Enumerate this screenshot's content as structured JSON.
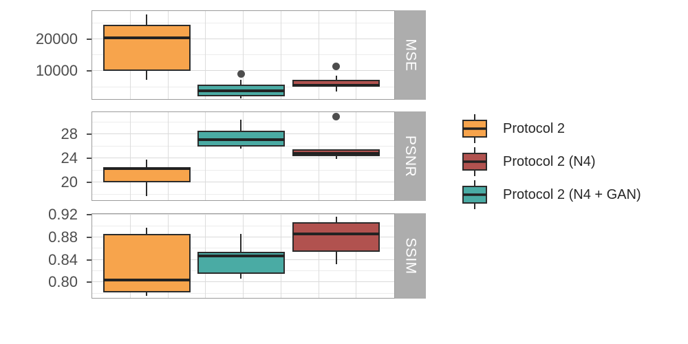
{
  "figure": {
    "background": "#ffffff",
    "panel_border": "#9b9b9b",
    "strip_fill": "#adadad",
    "strip_text_color": "#ffffff",
    "axis_text_color": "#4d4d4d",
    "box_outline_color": "#2b2b2b",
    "outlier_color": "#4d4d4d",
    "grid_major_color": "#d9d9d9",
    "grid_minor_color": "#ececec"
  },
  "legend": {
    "items": [
      {
        "label": "Protocol 2",
        "color": "#f7a44c"
      },
      {
        "label": "Protocol 2 (N4)",
        "color": "#b1524f"
      },
      {
        "label": "Protocol 2 (N4 + GAN)",
        "color": "#4aaba4"
      }
    ]
  },
  "chart_data": {
    "type": "boxplot",
    "orientation": "vertical",
    "legend_position": "right",
    "grid": "major+minor horizontal, vertical on",
    "x_order": [
      "Protocol 2",
      "Protocol 2 (N4 + GAN)",
      "Protocol 2 (N4)"
    ],
    "facets": [
      {
        "label": "MSE",
        "ylim": [
          1400,
          28700
        ],
        "major_ticks": [
          {
            "value": 10000,
            "label": "10000"
          },
          {
            "value": 20000,
            "label": "20000"
          }
        ],
        "minor_ticks": [
          5000,
          15000,
          25000
        ],
        "boxes": [
          {
            "series": "Protocol 2",
            "q1": 10100,
            "median": 20400,
            "q3": 24400,
            "whisker_low": 7100,
            "whisker_high": 27600,
            "outliers": []
          },
          {
            "series": "Protocol 2 (N4 + GAN)",
            "q1": 2000,
            "median": 3700,
            "q3": 5800,
            "whisker_low": 1500,
            "whisker_high": 7300,
            "outliers": [
              9000
            ]
          },
          {
            "series": "Protocol 2 (N4)",
            "q1": 5000,
            "median": 5400,
            "q3": 7300,
            "whisker_low": 3500,
            "whisker_high": 8600,
            "outliers": [
              11500
            ]
          }
        ]
      },
      {
        "label": "PSNR",
        "ylim": [
          17.1,
          31.6
        ],
        "major_ticks": [
          {
            "value": 20,
            "label": "20"
          },
          {
            "value": 24,
            "label": "24"
          },
          {
            "value": 28,
            "label": "28"
          }
        ],
        "minor_ticks": [
          18,
          22,
          26,
          30
        ],
        "boxes": [
          {
            "series": "Protocol 2",
            "q1": 19.9,
            "median": 22.2,
            "q3": 22.4,
            "whisker_low": 17.7,
            "whisker_high": 23.7,
            "outliers": []
          },
          {
            "series": "Protocol 2 (N4 + GAN)",
            "q1": 25.9,
            "median": 27.0,
            "q3": 28.5,
            "whisker_low": 25.6,
            "whisker_high": 30.4,
            "outliers": []
          },
          {
            "series": "Protocol 2 (N4)",
            "q1": 24.3,
            "median": 24.8,
            "q3": 25.4,
            "whisker_low": 23.8,
            "whisker_high": 25.4,
            "outliers": [
              30.9
            ]
          }
        ]
      },
      {
        "label": "SSIM",
        "ylim": [
          0.773,
          0.921
        ],
        "major_ticks": [
          {
            "value": 0.8,
            "label": "0.80"
          },
          {
            "value": 0.84,
            "label": "0.84"
          },
          {
            "value": 0.88,
            "label": "0.88"
          },
          {
            "value": 0.92,
            "label": "0.92"
          }
        ],
        "minor_ticks": [
          0.78,
          0.82,
          0.86,
          0.9
        ],
        "boxes": [
          {
            "series": "Protocol 2",
            "q1": 0.781,
            "median": 0.803,
            "q3": 0.886,
            "whisker_low": 0.775,
            "whisker_high": 0.897,
            "outliers": []
          },
          {
            "series": "Protocol 2 (N4 + GAN)",
            "q1": 0.814,
            "median": 0.846,
            "q3": 0.854,
            "whisker_low": 0.806,
            "whisker_high": 0.886,
            "outliers": []
          },
          {
            "series": "Protocol 2 (N4)",
            "q1": 0.854,
            "median": 0.886,
            "q3": 0.906,
            "whisker_low": 0.832,
            "whisker_high": 0.916,
            "outliers": []
          }
        ]
      }
    ]
  }
}
